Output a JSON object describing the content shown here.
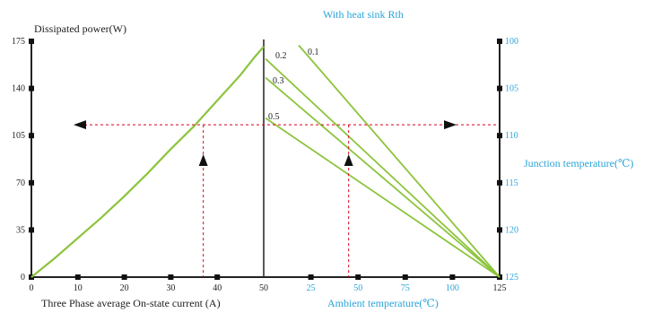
{
  "chart_data": {
    "type": "line",
    "title_left_axis": "Dissipated power(W)",
    "title_right_top": "With heat sink Rth",
    "left_panel": {
      "xlabel": "Three Phase average On-state current (A)",
      "ylabel": "Dissipated power(W)",
      "x_ticks": [
        0,
        10,
        20,
        30,
        40,
        50
      ],
      "y_ticks": [
        0,
        35,
        70,
        105,
        140,
        175
      ],
      "xlim": [
        0,
        50
      ],
      "ylim": [
        0,
        175
      ],
      "curve": {
        "x": [
          0,
          5,
          10,
          15,
          20,
          25,
          30,
          35,
          40,
          45,
          48,
          50
        ],
        "y": [
          0,
          14,
          29,
          44,
          60,
          77,
          95,
          112,
          131,
          150,
          163,
          171
        ]
      }
    },
    "right_panel": {
      "xlabel": "Ambient temperature(℃)",
      "ylabel": "Junction temperature(℃)",
      "x_ticks": [
        25,
        50,
        75,
        100,
        125
      ],
      "y_ticks_right": [
        100,
        105,
        110,
        115,
        120,
        125
      ],
      "xlim": [
        0,
        125
      ],
      "rth_lines": [
        {
          "name": "0.1",
          "start_power": 172
        },
        {
          "name": "0.2",
          "start_power": 162
        },
        {
          "name": "0.3",
          "start_power": 148
        },
        {
          "name": "0.5",
          "start_power": 118
        }
      ],
      "end_point": {
        "x": 125,
        "y_power": 0
      }
    },
    "annotation": {
      "power_level": 113,
      "current_at_level": 37,
      "ambient_at_level": 45
    },
    "colors": {
      "curve": "#8cc43c",
      "axis": "#222222",
      "guide": "#d9001b",
      "blue_text": "#2aa4d8"
    }
  }
}
